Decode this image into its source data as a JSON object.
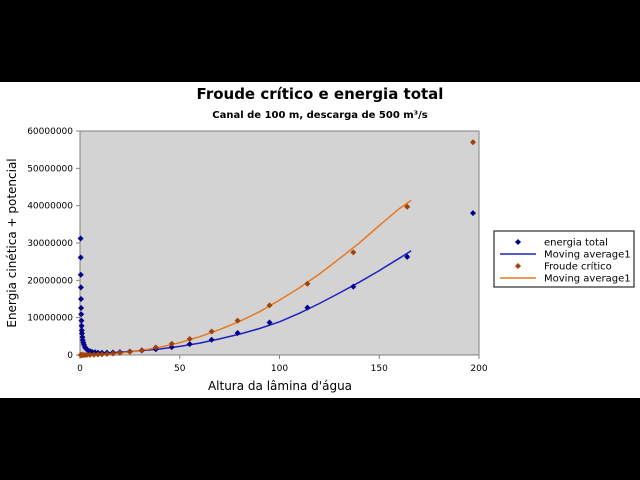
{
  "chart_data": {
    "type": "scatter",
    "title": "Froude crítico e energia total",
    "subtitle": "Canal de 100 m, descarga de 500 m³/s",
    "xlabel": "Altura da lâmina d'água",
    "ylabel": "Energia cinética + potencial",
    "xlim": [
      0,
      200
    ],
    "ylim": [
      0,
      60000000
    ],
    "x_ticks": [
      "0",
      "50",
      "100",
      "150",
      "200"
    ],
    "y_ticks": [
      "0",
      "10000000",
      "20000000",
      "30000000",
      "40000000",
      "50000000",
      "60000000"
    ],
    "x_tick_values": [
      0,
      50,
      100,
      150,
      200
    ],
    "y_tick_values": [
      0,
      10000000,
      20000000,
      30000000,
      40000000,
      50000000,
      60000000
    ],
    "grid": false,
    "plot_background": "#d3d3d3",
    "legend_position": "right",
    "series": [
      {
        "name": "energia total",
        "marker": "diamond",
        "color": "#00008b",
        "x": [
          0.3,
          0.35,
          0.4,
          0.45,
          0.5,
          0.55,
          0.6,
          0.7,
          0.8,
          0.9,
          1.0,
          1.2,
          1.4,
          1.7,
          2.0,
          2.5,
          3.0,
          4.0,
          5.0,
          6.0,
          7.5,
          9.0,
          11.0,
          13.5,
          16.5,
          20.0,
          25.0,
          31.0,
          38.0,
          46.0,
          55.0,
          66.0,
          79.0,
          95.0,
          114.0,
          137.0,
          164.0,
          197.0
        ],
        "y": [
          31200000,
          26100000,
          21500000,
          18100000,
          15000000,
          12600000,
          10900000,
          9200000,
          7800000,
          6600000,
          5800000,
          4800000,
          4000000,
          3300000,
          2700000,
          2100000,
          1700000,
          1250000,
          1000000,
          850000,
          720000,
          650000,
          600000,
          620000,
          680000,
          780000,
          950000,
          1200000,
          1550000,
          2100000,
          2900000,
          4100000,
          5900000,
          8700000,
          12700000,
          18300000,
          26300000,
          38000000
        ]
      },
      {
        "name": "Moving average1",
        "line": true,
        "color": "#2020c0",
        "x": [
          2.5,
          5,
          10,
          15,
          20,
          30,
          40,
          50,
          60,
          70,
          80,
          90,
          100,
          110,
          120,
          130,
          140,
          150,
          160,
          166
        ],
        "y": [
          300000,
          350000,
          480000,
          600000,
          720000,
          1150000,
          1600000,
          2300000,
          3200000,
          4300000,
          5600000,
          7100000,
          8900000,
          11200000,
          13800000,
          16600000,
          19500000,
          22600000,
          25900000,
          27900000
        ]
      },
      {
        "name": "Froude crítico",
        "marker": "diamond",
        "color": "#a0430a",
        "x": [
          0.3,
          0.5,
          0.8,
          1.2,
          1.7,
          2.5,
          3.5,
          5.0,
          7.0,
          9.0,
          11.0,
          13.5,
          16.5,
          20.0,
          25.0,
          31.0,
          38.0,
          46.0,
          55.0,
          66.0,
          79.0,
          95.0,
          114.0,
          137.0,
          164.0,
          197.0
        ],
        "y": [
          0,
          0,
          0,
          0,
          5000,
          10000,
          20000,
          40000,
          80000,
          120000,
          180000,
          260000,
          380000,
          560000,
          850000,
          1300000,
          2050000,
          3000000,
          4300000,
          6300000,
          9200000,
          13300000,
          19100000,
          27500000,
          39700000,
          57000000
        ]
      },
      {
        "name": "Moving average1",
        "line": true,
        "color": "#e87820",
        "x": [
          1,
          5,
          10,
          20,
          30,
          40,
          50,
          60,
          70,
          80,
          90,
          100,
          110,
          120,
          130,
          140,
          150,
          160,
          166
        ],
        "y": [
          0,
          50000,
          150000,
          520000,
          1150000,
          2100000,
          3300000,
          4900000,
          6800000,
          9000000,
          11600000,
          14700000,
          18000000,
          21700000,
          25800000,
          30000000,
          34700000,
          39200000,
          41400000
        ]
      }
    ]
  }
}
